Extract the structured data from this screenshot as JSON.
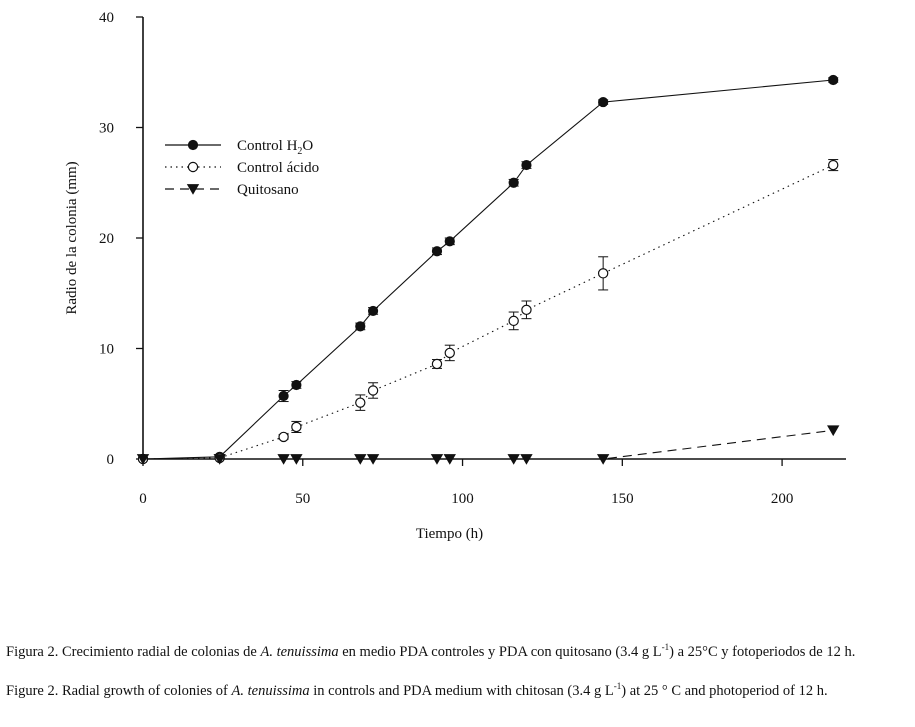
{
  "chart_data": {
    "type": "line",
    "xlabel": "Tiempo (h)",
    "ylabel": "Radio de la colonia (mm)",
    "xlim": [
      0,
      220
    ],
    "ylim": [
      0,
      40
    ],
    "xticks": [
      0,
      50,
      100,
      150,
      200
    ],
    "yticks": [
      0,
      10,
      20,
      30,
      40
    ],
    "legend_position": "top-left",
    "grid": false,
    "series": [
      {
        "name": "Control H",
        "name_sub": "2",
        "name_tail": "O",
        "line_style": "solid",
        "marker": "filled-circle",
        "x": [
          0,
          24,
          44,
          48,
          68,
          72,
          92,
          96,
          116,
          120,
          144,
          216
        ],
        "y": [
          0,
          0.2,
          5.7,
          6.7,
          12.0,
          13.4,
          18.8,
          19.7,
          25.0,
          26.6,
          32.3,
          34.3
        ],
        "err": [
          0.1,
          0.2,
          0.5,
          0.3,
          0.3,
          0.3,
          0.3,
          0.3,
          0.3,
          0.3,
          0.2,
          0.2
        ]
      },
      {
        "name": "Control ácido",
        "line_style": "dotted",
        "marker": "open-circle",
        "x": [
          0,
          24,
          44,
          48,
          68,
          72,
          92,
          96,
          116,
          120,
          144,
          216
        ],
        "y": [
          0,
          0.1,
          2.0,
          2.9,
          5.1,
          6.2,
          8.6,
          9.6,
          12.5,
          13.5,
          16.8,
          26.6
        ],
        "err": [
          0.1,
          0.1,
          0.2,
          0.5,
          0.7,
          0.7,
          0.4,
          0.7,
          0.8,
          0.8,
          1.5,
          0.5
        ]
      },
      {
        "name": "Quitosano",
        "line_style": "dashed",
        "marker": "filled-triangle-down",
        "x": [
          0,
          24,
          44,
          48,
          68,
          72,
          92,
          96,
          116,
          120,
          144,
          216
        ],
        "y": [
          0,
          0,
          0,
          0,
          0,
          0,
          0,
          0,
          0,
          0,
          0,
          2.6
        ],
        "err": [
          0,
          0,
          0,
          0,
          0,
          0,
          0,
          0,
          0,
          0,
          0,
          0
        ]
      }
    ]
  },
  "caption": {
    "es": {
      "a": "Figura 2. Crecimiento radial de colonias de ",
      "species": "A. tenuissima",
      "b": " en medio PDA controles y PDA con quitosano (3.4 g L",
      "sup": "-1",
      "c": ") a 25°C y fotoperiodos de 12 h."
    },
    "en": {
      "a": "Figure 2. Radial growth of colonies of ",
      "species": "A. tenuissima",
      "b": " in controls and PDA medium with chitosan (3.4 g L",
      "sup": "-1",
      "c": ") at 25 ° C and photoperiod of 12 h."
    }
  }
}
